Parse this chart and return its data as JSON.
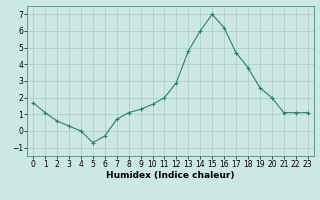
{
  "x": [
    0,
    1,
    2,
    3,
    4,
    5,
    6,
    7,
    8,
    9,
    10,
    11,
    12,
    13,
    14,
    15,
    16,
    17,
    18,
    19,
    20,
    21,
    22,
    23
  ],
  "y": [
    1.7,
    1.1,
    0.6,
    0.3,
    0.0,
    -0.7,
    -0.3,
    0.7,
    1.1,
    1.3,
    1.6,
    2.0,
    2.9,
    4.8,
    6.0,
    7.0,
    6.2,
    4.7,
    3.8,
    2.6,
    2.0,
    1.1,
    1.1,
    1.1
  ],
  "line_color": "#2d7d6e",
  "marker": "+",
  "marker_size": 3,
  "bg_color": "#cce8e4",
  "grid_color": "#aacbc6",
  "xlabel": "Humidex (Indice chaleur)",
  "xlim": [
    -0.5,
    23.5
  ],
  "ylim": [
    -1.5,
    7.5
  ],
  "yticks": [
    -1,
    0,
    1,
    2,
    3,
    4,
    5,
    6,
    7
  ],
  "xticks": [
    0,
    1,
    2,
    3,
    4,
    5,
    6,
    7,
    8,
    9,
    10,
    11,
    12,
    13,
    14,
    15,
    16,
    17,
    18,
    19,
    20,
    21,
    22,
    23
  ],
  "xlabel_fontsize": 6.5,
  "tick_fontsize": 5.5,
  "line_width": 0.8
}
